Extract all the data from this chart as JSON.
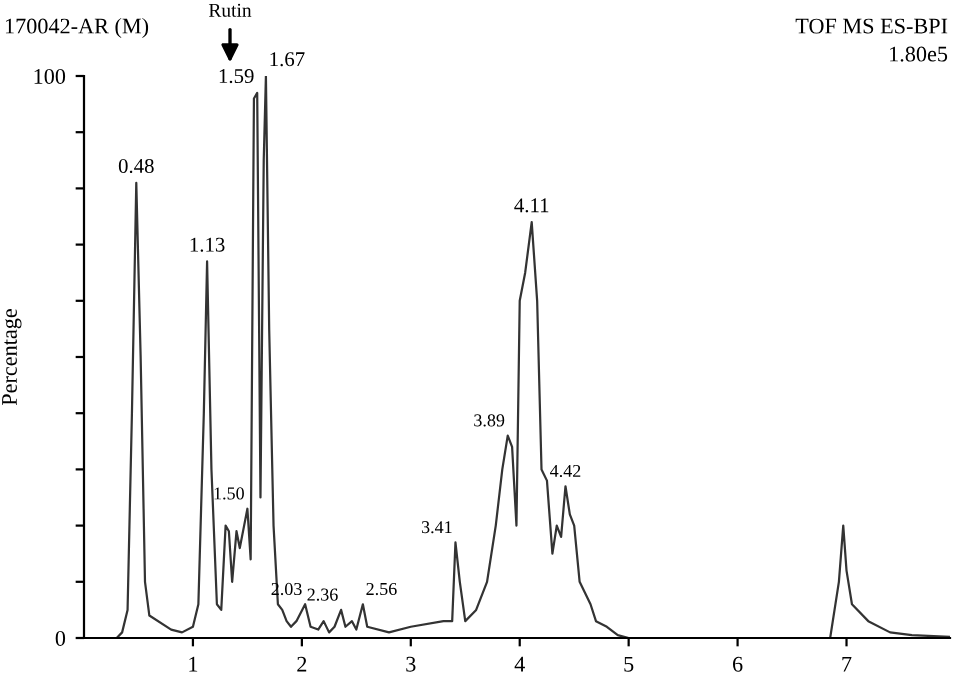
{
  "chart_data": {
    "type": "line",
    "ylabel": "Percentage",
    "xlim": [
      0,
      7.95
    ],
    "xticks": [
      1,
      2,
      3,
      4,
      5,
      6,
      7
    ],
    "ylim": [
      0,
      100
    ],
    "yticks": [
      0,
      {
        "value": 10,
        "label": null
      },
      {
        "value": 20,
        "label": null
      },
      {
        "value": 30,
        "label": null
      },
      {
        "value": 40,
        "label": null
      },
      {
        "value": 50,
        "label": null
      },
      {
        "value": 60,
        "label": null
      },
      {
        "value": 70,
        "label": null
      },
      {
        "value": 80,
        "label": null
      },
      {
        "value": 90,
        "label": null
      },
      100
    ],
    "grid": false,
    "marker": "none",
    "line_style": "solid",
    "series": [
      {
        "color": "#333333",
        "x": [
          0,
          0.3,
          0.35,
          0.4,
          0.44,
          0.48,
          0.52,
          0.56,
          0.6,
          0.8,
          0.9,
          1.0,
          1.05,
          1.1,
          1.13,
          1.17,
          1.22,
          1.26,
          1.3,
          1.33,
          1.36,
          1.4,
          1.43,
          1.47,
          1.5,
          1.53,
          1.56,
          1.59,
          1.62,
          1.65,
          1.67,
          1.7,
          1.74,
          1.78,
          1.82,
          1.86,
          1.9,
          1.95,
          2.03,
          2.08,
          2.15,
          2.2,
          2.25,
          2.3,
          2.36,
          2.4,
          2.46,
          2.5,
          2.56,
          2.6,
          2.8,
          3.0,
          3.3,
          3.38,
          3.41,
          3.45,
          3.5,
          3.6,
          3.7,
          3.78,
          3.84,
          3.89,
          3.93,
          3.97,
          4.0,
          4.05,
          4.11,
          4.16,
          4.2,
          4.25,
          4.3,
          4.34,
          4.38,
          4.42,
          4.46,
          4.5,
          4.55,
          4.6,
          4.65,
          4.7,
          4.8,
          4.9,
          5.0,
          6.85,
          6.93,
          6.97,
          7.0,
          7.05,
          7.2,
          7.4,
          7.6,
          7.95
        ],
        "values": [
          0,
          0,
          1,
          5,
          40,
          81,
          50,
          10,
          4,
          1.5,
          1,
          2,
          6,
          40,
          67,
          30,
          6,
          5,
          20,
          19,
          10,
          19,
          16,
          20,
          23,
          14,
          96,
          97,
          25,
          85,
          100,
          55,
          20,
          6,
          5,
          3,
          2,
          3,
          6,
          2,
          1.5,
          3,
          1,
          2,
          5,
          2,
          3,
          1.5,
          6,
          2,
          1,
          2,
          3,
          3,
          17,
          10,
          3,
          5,
          10,
          20,
          30,
          36,
          34,
          20,
          60,
          65,
          74,
          60,
          30,
          28,
          15,
          20,
          18,
          27,
          22,
          20,
          10,
          8,
          6,
          3,
          2,
          0.5,
          0,
          0,
          10,
          20,
          12,
          6,
          3,
          1,
          0.5,
          0.2
        ]
      }
    ],
    "annotations": [
      {
        "text": "0.48",
        "x": 0.48,
        "y": 81
      },
      {
        "text": "1.13",
        "x": 1.13,
        "y": 67
      },
      {
        "text": "1.59",
        "x": 1.59,
        "y": 97
      },
      {
        "text": "1.67",
        "x": 1.67,
        "y": 100
      },
      {
        "text": "1.50",
        "x": 1.5,
        "y": 23
      },
      {
        "text": "2.03",
        "x": 2.03,
        "y": 6
      },
      {
        "text": "2.36",
        "x": 2.36,
        "y": 5
      },
      {
        "text": "2.56",
        "x": 2.56,
        "y": 6
      },
      {
        "text": "3.41",
        "x": 3.41,
        "y": 17
      },
      {
        "text": "3.89",
        "x": 3.89,
        "y": 36
      },
      {
        "text": "4.11",
        "x": 4.11,
        "y": 74
      },
      {
        "text": "4.42",
        "x": 4.42,
        "y": 27
      },
      "Rutin",
      "170042-AR (M)",
      "TOF MS ES-BPI",
      "1.80e5"
    ]
  }
}
